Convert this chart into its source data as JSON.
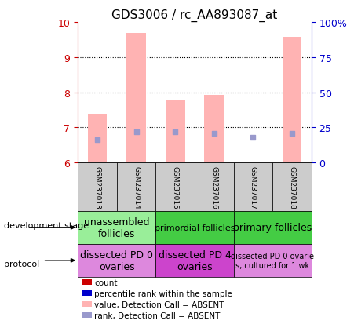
{
  "title": "GDS3006 / rc_AA893087_at",
  "samples": [
    "GSM237013",
    "GSM237014",
    "GSM237015",
    "GSM237016",
    "GSM237017",
    "GSM237018"
  ],
  "pink_bar_bottom": [
    6,
    6,
    6,
    6,
    6,
    6
  ],
  "pink_bar_top": [
    7.38,
    9.68,
    7.78,
    7.92,
    6.02,
    9.58
  ],
  "blue_square_y": [
    6.65,
    6.88,
    6.87,
    6.83,
    6.73,
    6.84
  ],
  "ylim": [
    6,
    10
  ],
  "yticks_left": [
    6,
    7,
    8,
    9,
    10
  ],
  "yticks_right": [
    0,
    25,
    50,
    75,
    100
  ],
  "ytick_labels_right": [
    "0",
    "25",
    "50",
    "75",
    "100%"
  ],
  "left_axis_color": "#cc0000",
  "right_axis_color": "#0000cc",
  "pink_bar_color": "#ffb3b3",
  "blue_square_color": "#9999cc",
  "bg_color": "#ffffff",
  "plot_bg_color": "#ffffff",
  "development_stage_row": {
    "label": "development stage",
    "groups": [
      {
        "cols": [
          0,
          1
        ],
        "text": "unassembled\nfollicles",
        "color": "#99ee99",
        "text_size": 9
      },
      {
        "cols": [
          2,
          3
        ],
        "text": "primordial follicles",
        "color": "#44cc44",
        "text_size": 8
      },
      {
        "cols": [
          4,
          5
        ],
        "text": "primary follicles",
        "color": "#44cc44",
        "text_size": 9
      }
    ]
  },
  "protocol_row": {
    "label": "protocol",
    "groups": [
      {
        "cols": [
          0,
          1
        ],
        "text": "dissected PD 0\novaries",
        "color": "#dd88dd",
        "text_size": 9
      },
      {
        "cols": [
          2,
          3
        ],
        "text": "dissected PD 4\novaries",
        "color": "#cc44cc",
        "text_size": 9
      },
      {
        "cols": [
          4,
          5
        ],
        "text": "dissected PD 0 ovarie\ns, cultured for 1 wk",
        "color": "#dd88dd",
        "text_size": 7
      }
    ]
  },
  "legend_items": [
    {
      "color": "#cc0000",
      "label": "count"
    },
    {
      "color": "#0000cc",
      "label": "percentile rank within the sample"
    },
    {
      "color": "#ffb3b3",
      "label": "value, Detection Call = ABSENT"
    },
    {
      "color": "#9999cc",
      "label": "rank, Detection Call = ABSENT"
    }
  ],
  "dev_stage_label": "development stage",
  "protocol_label": "protocol"
}
